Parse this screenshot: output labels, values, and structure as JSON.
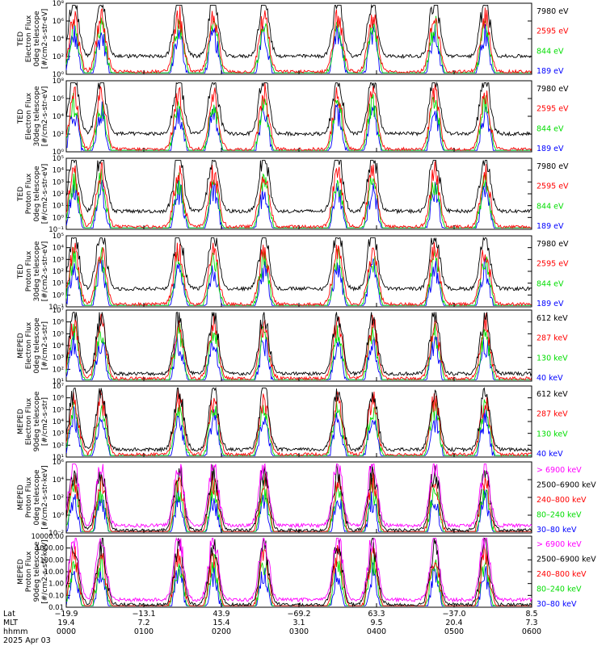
{
  "chart_data": {
    "type": "line",
    "date_label": "2025 Apr 03",
    "x_axis": {
      "row_labels": [
        "Lat",
        "MLT",
        "hhmm"
      ],
      "ticks": [
        {
          "hhmm": "0000",
          "lat": "−19.9",
          "mlt": "19.4"
        },
        {
          "hhmm": "0100",
          "lat": "−13.1",
          "mlt": "7.2"
        },
        {
          "hhmm": "0200",
          "lat": "43.9",
          "mlt": "15.4"
        },
        {
          "hhmm": "0300",
          "lat": "−69.2",
          "mlt": "3.1"
        },
        {
          "hhmm": "0400",
          "lat": "63.3",
          "mlt": "9.5"
        },
        {
          "hhmm": "0500",
          "lat": "−37.0",
          "mlt": "20.4"
        },
        {
          "hhmm": "0600",
          "lat": "8.5",
          "mlt": "7.3"
        }
      ],
      "range_hours": [
        0,
        6
      ]
    },
    "panels": [
      {
        "instrument": "TED",
        "ylabel_lines": [
          "TED",
          "Electron Flux",
          "0deg telescope",
          "[#/cm2-s-str-eV]"
        ],
        "yscale": "log",
        "ylim_exp": [
          0,
          8
        ],
        "ytick_labels": [
          "10⁰",
          "10²",
          "10⁴",
          "10⁶",
          "10⁸"
        ],
        "legend": [
          {
            "label": "7980 eV",
            "color": "#000000"
          },
          {
            "label": "2595 eV",
            "color": "#ff0000"
          },
          {
            "label": "844 eV",
            "color": "#00dd00"
          },
          {
            "label": "189 eV",
            "color": "#0000ff"
          }
        ]
      },
      {
        "instrument": "TED",
        "ylabel_lines": [
          "TED",
          "Electron Flux",
          "30deg telescope",
          "[#/cm2-s-str-eV]"
        ],
        "yscale": "log",
        "ylim_exp": [
          0,
          8
        ],
        "ytick_labels": [
          "10⁰",
          "10²",
          "10⁴",
          "10⁶",
          "10⁸"
        ],
        "legend": [
          {
            "label": "7980 eV",
            "color": "#000000"
          },
          {
            "label": "2595 eV",
            "color": "#ff0000"
          },
          {
            "label": "844 eV",
            "color": "#00dd00"
          },
          {
            "label": "189 eV",
            "color": "#0000ff"
          }
        ]
      },
      {
        "instrument": "TED",
        "ylabel_lines": [
          "TED",
          "Proton Flux",
          "0deg telescope",
          "[#/cm2-s-str-eV]"
        ],
        "yscale": "log",
        "ylim_exp": [
          -1,
          5
        ],
        "ytick_labels": [
          "10⁻¹",
          "10⁰",
          "10¹",
          "10²",
          "10³",
          "10⁴",
          "10⁵"
        ],
        "legend": [
          {
            "label": "7980 eV",
            "color": "#000000"
          },
          {
            "label": "2595 eV",
            "color": "#ff0000"
          },
          {
            "label": "844 eV",
            "color": "#00dd00"
          },
          {
            "label": "189 eV",
            "color": "#0000ff"
          }
        ]
      },
      {
        "instrument": "TED",
        "ylabel_lines": [
          "TED",
          "Proton Flux",
          "30deg telescope",
          "[#/cm2-s-str-eV]"
        ],
        "yscale": "log",
        "ylim_exp": [
          -1,
          5
        ],
        "ytick_labels": [
          "10⁻¹",
          "10⁰",
          "10¹",
          "10²",
          "10³",
          "10⁴",
          "10⁵"
        ],
        "legend": [
          {
            "label": "7980 eV",
            "color": "#000000"
          },
          {
            "label": "2595 eV",
            "color": "#ff0000"
          },
          {
            "label": "844 eV",
            "color": "#00dd00"
          },
          {
            "label": "189 eV",
            "color": "#0000ff"
          }
        ]
      },
      {
        "instrument": "MEPED",
        "ylabel_lines": [
          "MEPED",
          "Electron Flux",
          "0deg telescope",
          "[#/cm2-s-str]"
        ],
        "yscale": "log",
        "ylim_exp": [
          1,
          7
        ],
        "ytick_labels": [
          "10¹",
          "10²",
          "10³",
          "10⁴",
          "10⁵",
          "10⁶",
          "10⁷"
        ],
        "legend": [
          {
            "label": "612 keV",
            "color": "#000000"
          },
          {
            "label": "287 keV",
            "color": "#ff0000"
          },
          {
            "label": "130 keV",
            "color": "#00dd00"
          },
          {
            "label": "40 keV",
            "color": "#0000ff"
          }
        ]
      },
      {
        "instrument": "MEPED",
        "ylabel_lines": [
          "MEPED",
          "Electron Flux",
          "90deg telescope",
          "[#/cm2-s-str]"
        ],
        "yscale": "log",
        "ylim_exp": [
          1,
          7
        ],
        "ytick_labels": [
          "10¹",
          "10²",
          "10³",
          "10⁴",
          "10⁵",
          "10⁶",
          "10⁷"
        ],
        "legend": [
          {
            "label": "612 keV",
            "color": "#000000"
          },
          {
            "label": "287 keV",
            "color": "#ff0000"
          },
          {
            "label": "130 keV",
            "color": "#00dd00"
          },
          {
            "label": "40 keV",
            "color": "#0000ff"
          }
        ]
      },
      {
        "instrument": "MEPED",
        "ylabel_lines": [
          "MEPED",
          "Proton Flux",
          "0deg telescope",
          "[#/cm2-s-str-keV]"
        ],
        "yscale": "log",
        "ylim_exp": [
          -2,
          6
        ],
        "ytick_labels": [
          "10⁻²",
          "10⁰",
          "10²",
          "10⁴",
          "10⁶"
        ],
        "legend": [
          {
            "label": "> 6900 keV",
            "color": "#ff00ff"
          },
          {
            "label": "2500–6900 keV",
            "color": "#000000"
          },
          {
            "label": "240–800 keV",
            "color": "#ff0000"
          },
          {
            "label": "80–240 keV",
            "color": "#00dd00"
          },
          {
            "label": "30–80 keV",
            "color": "#0000ff"
          }
        ]
      },
      {
        "instrument": "MEPED",
        "ylabel_lines": [
          "MEPED",
          "Proton Flux",
          "90deg telescope",
          "[#/cm2-s-str-keV]"
        ],
        "yscale": "log",
        "ylim_exp": [
          -2,
          4
        ],
        "ytick_labels": [
          "0.01",
          "0.10",
          "1.00",
          "10.00",
          "100.00",
          "1000.00",
          "10000.00"
        ],
        "legend": [
          {
            "label": "> 6900 keV",
            "color": "#ff00ff"
          },
          {
            "label": "2500–6900 keV",
            "color": "#000000"
          },
          {
            "label": "240–800 keV",
            "color": "#ff0000"
          },
          {
            "label": "80–240 keV",
            "color": "#00dd00"
          },
          {
            "label": "30–80 keV",
            "color": "#0000ff"
          }
        ]
      }
    ],
    "pass_peak_times_hours": [
      0.1,
      0.45,
      1.45,
      1.9,
      2.55,
      3.5,
      3.95,
      4.75,
      5.4
    ],
    "grid": false,
    "legend_placement": "right"
  }
}
